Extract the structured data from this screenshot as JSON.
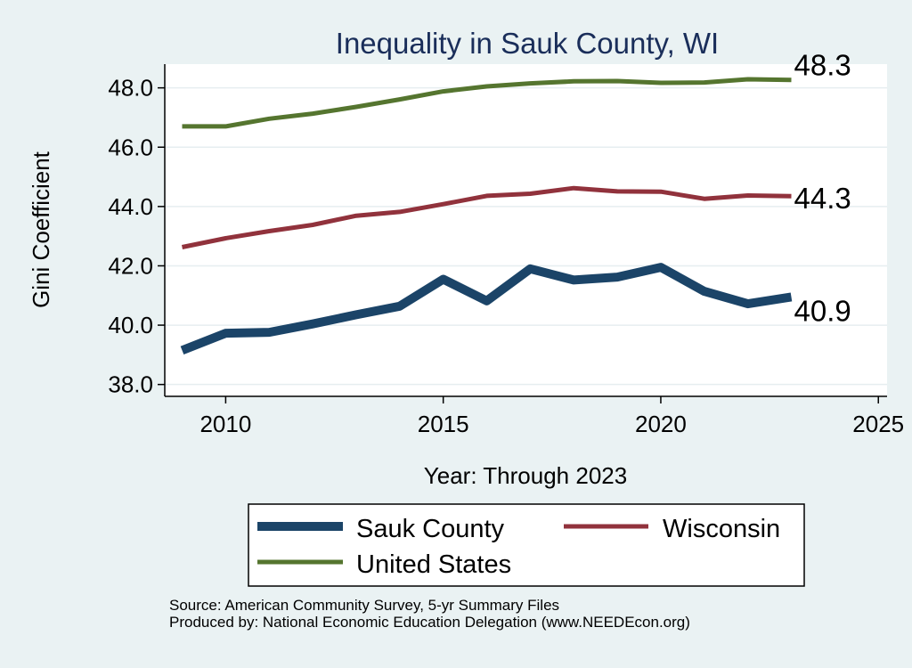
{
  "chart_data": {
    "type": "line",
    "title": "Inequality in Sauk County, WI",
    "xlabel": "Year: Through 2023",
    "ylabel": "Gini Coefficient",
    "xlim": [
      2008.6,
      2025.2
    ],
    "ylim": [
      37.6,
      48.8
    ],
    "x_ticks": [
      2010,
      2015,
      2020,
      2025
    ],
    "y_ticks": [
      38.0,
      40.0,
      42.0,
      44.0,
      46.0,
      48.0
    ],
    "y_tick_labels": [
      "38.0",
      "40.0",
      "42.0",
      "44.0",
      "46.0",
      "48.0"
    ],
    "grid": true,
    "x": [
      2009,
      2010,
      2011,
      2012,
      2013,
      2014,
      2015,
      2016,
      2017,
      2018,
      2019,
      2020,
      2021,
      2022,
      2023
    ],
    "series": [
      {
        "name": "Sauk County",
        "color": "#1b4468",
        "values": [
          39.15,
          39.73,
          39.76,
          40.04,
          40.35,
          40.64,
          41.55,
          40.82,
          41.9,
          41.52,
          41.62,
          41.95,
          41.14,
          40.72,
          40.95
        ],
        "end_label": "40.9"
      },
      {
        "name": "Wisconsin",
        "color": "#91323c",
        "values": [
          42.63,
          42.93,
          43.17,
          43.38,
          43.69,
          43.82,
          44.08,
          44.36,
          44.43,
          44.62,
          44.51,
          44.5,
          44.26,
          44.37,
          44.35
        ],
        "end_label": "44.3"
      },
      {
        "name": "United States",
        "color": "#55752f",
        "values": [
          46.7,
          46.7,
          46.96,
          47.13,
          47.36,
          47.61,
          47.88,
          48.05,
          48.15,
          48.22,
          48.23,
          48.17,
          48.18,
          48.29,
          48.27
        ],
        "end_label": "48.3"
      }
    ],
    "legend": {
      "placement": "bottom",
      "entries": [
        "Sauk County",
        "Wisconsin",
        "United States"
      ]
    }
  },
  "footer": {
    "source": "Source: American Community Survey, 5-yr Summary Files",
    "produced_by": "Produced by: National Economic Education Delegation (www.NEEDEcon.org)"
  }
}
